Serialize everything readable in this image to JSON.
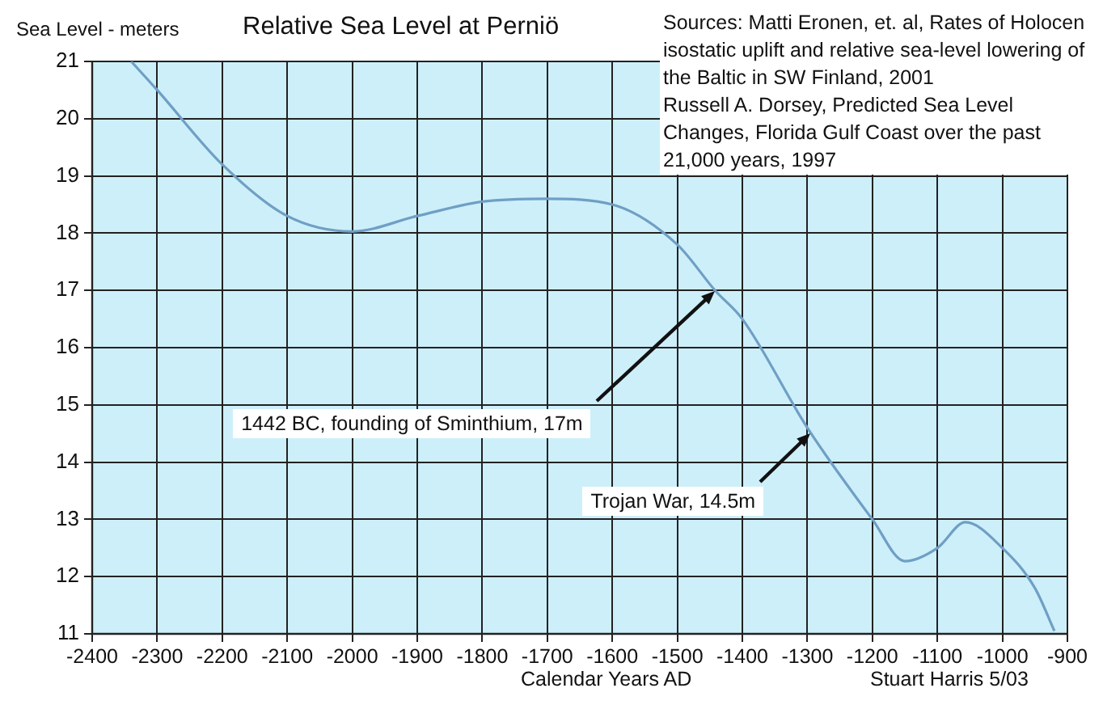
{
  "chart_data": {
    "type": "line",
    "title": "Relative Sea Level at Perniö",
    "ylabel": "Sea Level - meters",
    "xlabel": "Calendar Years AD",
    "x": [
      -2340,
      -2300,
      -2200,
      -2100,
      -2000,
      -1900,
      -1800,
      -1700,
      -1600,
      -1500,
      -1442,
      -1400,
      -1300,
      -1200,
      -1150,
      -1100,
      -1057,
      -1000,
      -950,
      -920
    ],
    "series": [
      {
        "color": "#6f9fc4",
        "values": [
          21,
          20.5,
          19.2,
          18.3,
          18.03,
          18.3,
          18.55,
          18.6,
          18.5,
          17.8,
          17,
          16.5,
          14.6,
          13,
          12.27,
          12.5,
          12.95,
          12.5,
          11.8,
          11.05
        ]
      }
    ],
    "xlim": [
      -2400,
      -900
    ],
    "xticks": [
      -2400,
      -2300,
      -2200,
      -2100,
      -2000,
      -1900,
      -1800,
      -1700,
      -1600,
      -1500,
      -1400,
      -1300,
      -1200,
      -1100,
      -1000,
      -900
    ],
    "ylim": [
      11,
      21
    ],
    "yticks": [
      11,
      12,
      13,
      14,
      15,
      16,
      17,
      18,
      19,
      20,
      21
    ],
    "grid": true,
    "legend": false,
    "marker": "none",
    "line_style": "solid",
    "annotations": [
      "Sources: Matti Eronen, et. al, Rates of Holocen isostatic uplift and relative sea-level lowering of the Baltic in SW Finland, 2001",
      "Russell A. Dorsey, Predicted Sea Level Changes, Florida Gulf Coast over the past 21,000 years, 1997",
      {
        "text": "1442 BC, founding of Sminthium, 17m",
        "x": -1442,
        "y": 17
      },
      {
        "text": "Trojan War, 14.5m",
        "x": -1295,
        "y": 14.5
      },
      "Stuart Harris 5/03"
    ]
  }
}
